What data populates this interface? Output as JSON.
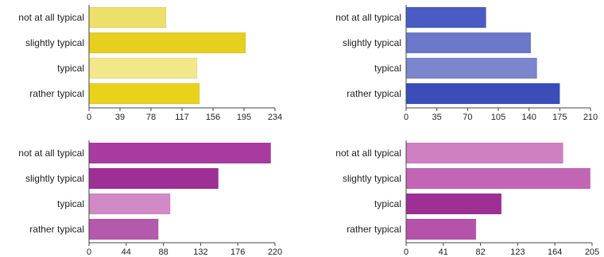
{
  "chart_data": [
    {
      "type": "bar",
      "orientation": "horizontal",
      "categories": [
        "not at all typical",
        "slightly typical",
        "typical",
        "rather typical"
      ],
      "values": [
        97,
        197,
        136,
        139
      ],
      "bar_colors": [
        "#ece06a",
        "#e6cf1e",
        "#f2e78a",
        "#e8d31a"
      ],
      "xlim": [
        0,
        234
      ],
      "ticks": [
        "0",
        "39",
        "78",
        "117",
        "156",
        "195",
        "234"
      ],
      "grid": false
    },
    {
      "type": "bar",
      "orientation": "horizontal",
      "categories": [
        "not at all typical",
        "slightly typical",
        "typical",
        "rather typical"
      ],
      "values": [
        91,
        142,
        149,
        175
      ],
      "bar_colors": [
        "#4a5cc4",
        "#6b78c9",
        "#7b86cd",
        "#3a4db8"
      ],
      "xlim": [
        0,
        210
      ],
      "ticks": [
        "0",
        "35",
        "70",
        "105",
        "140",
        "175",
        "210"
      ],
      "grid": false
    },
    {
      "type": "bar",
      "orientation": "horizontal",
      "categories": [
        "not at all typical",
        "slightly typical",
        "typical",
        "rather typical"
      ],
      "values": [
        215,
        153,
        96,
        82
      ],
      "bar_colors": [
        "#a83aa0",
        "#9e2f95",
        "#d18ac6",
        "#b45aac"
      ],
      "xlim": [
        0,
        220
      ],
      "ticks": [
        "0",
        "44",
        "88",
        "132",
        "176",
        "220"
      ],
      "grid": false
    },
    {
      "type": "bar",
      "orientation": "horizontal",
      "categories": [
        "not at all typical",
        "slightly typical",
        "typical",
        "rather typical"
      ],
      "values": [
        173,
        203,
        105,
        77
      ],
      "bar_colors": [
        "#cf7fc2",
        "#c265b5",
        "#9e2f95",
        "#b553aa"
      ],
      "xlim": [
        0,
        205
      ],
      "ticks": [
        "0",
        "41",
        "82",
        "123",
        "164",
        "205"
      ],
      "grid": false
    }
  ]
}
